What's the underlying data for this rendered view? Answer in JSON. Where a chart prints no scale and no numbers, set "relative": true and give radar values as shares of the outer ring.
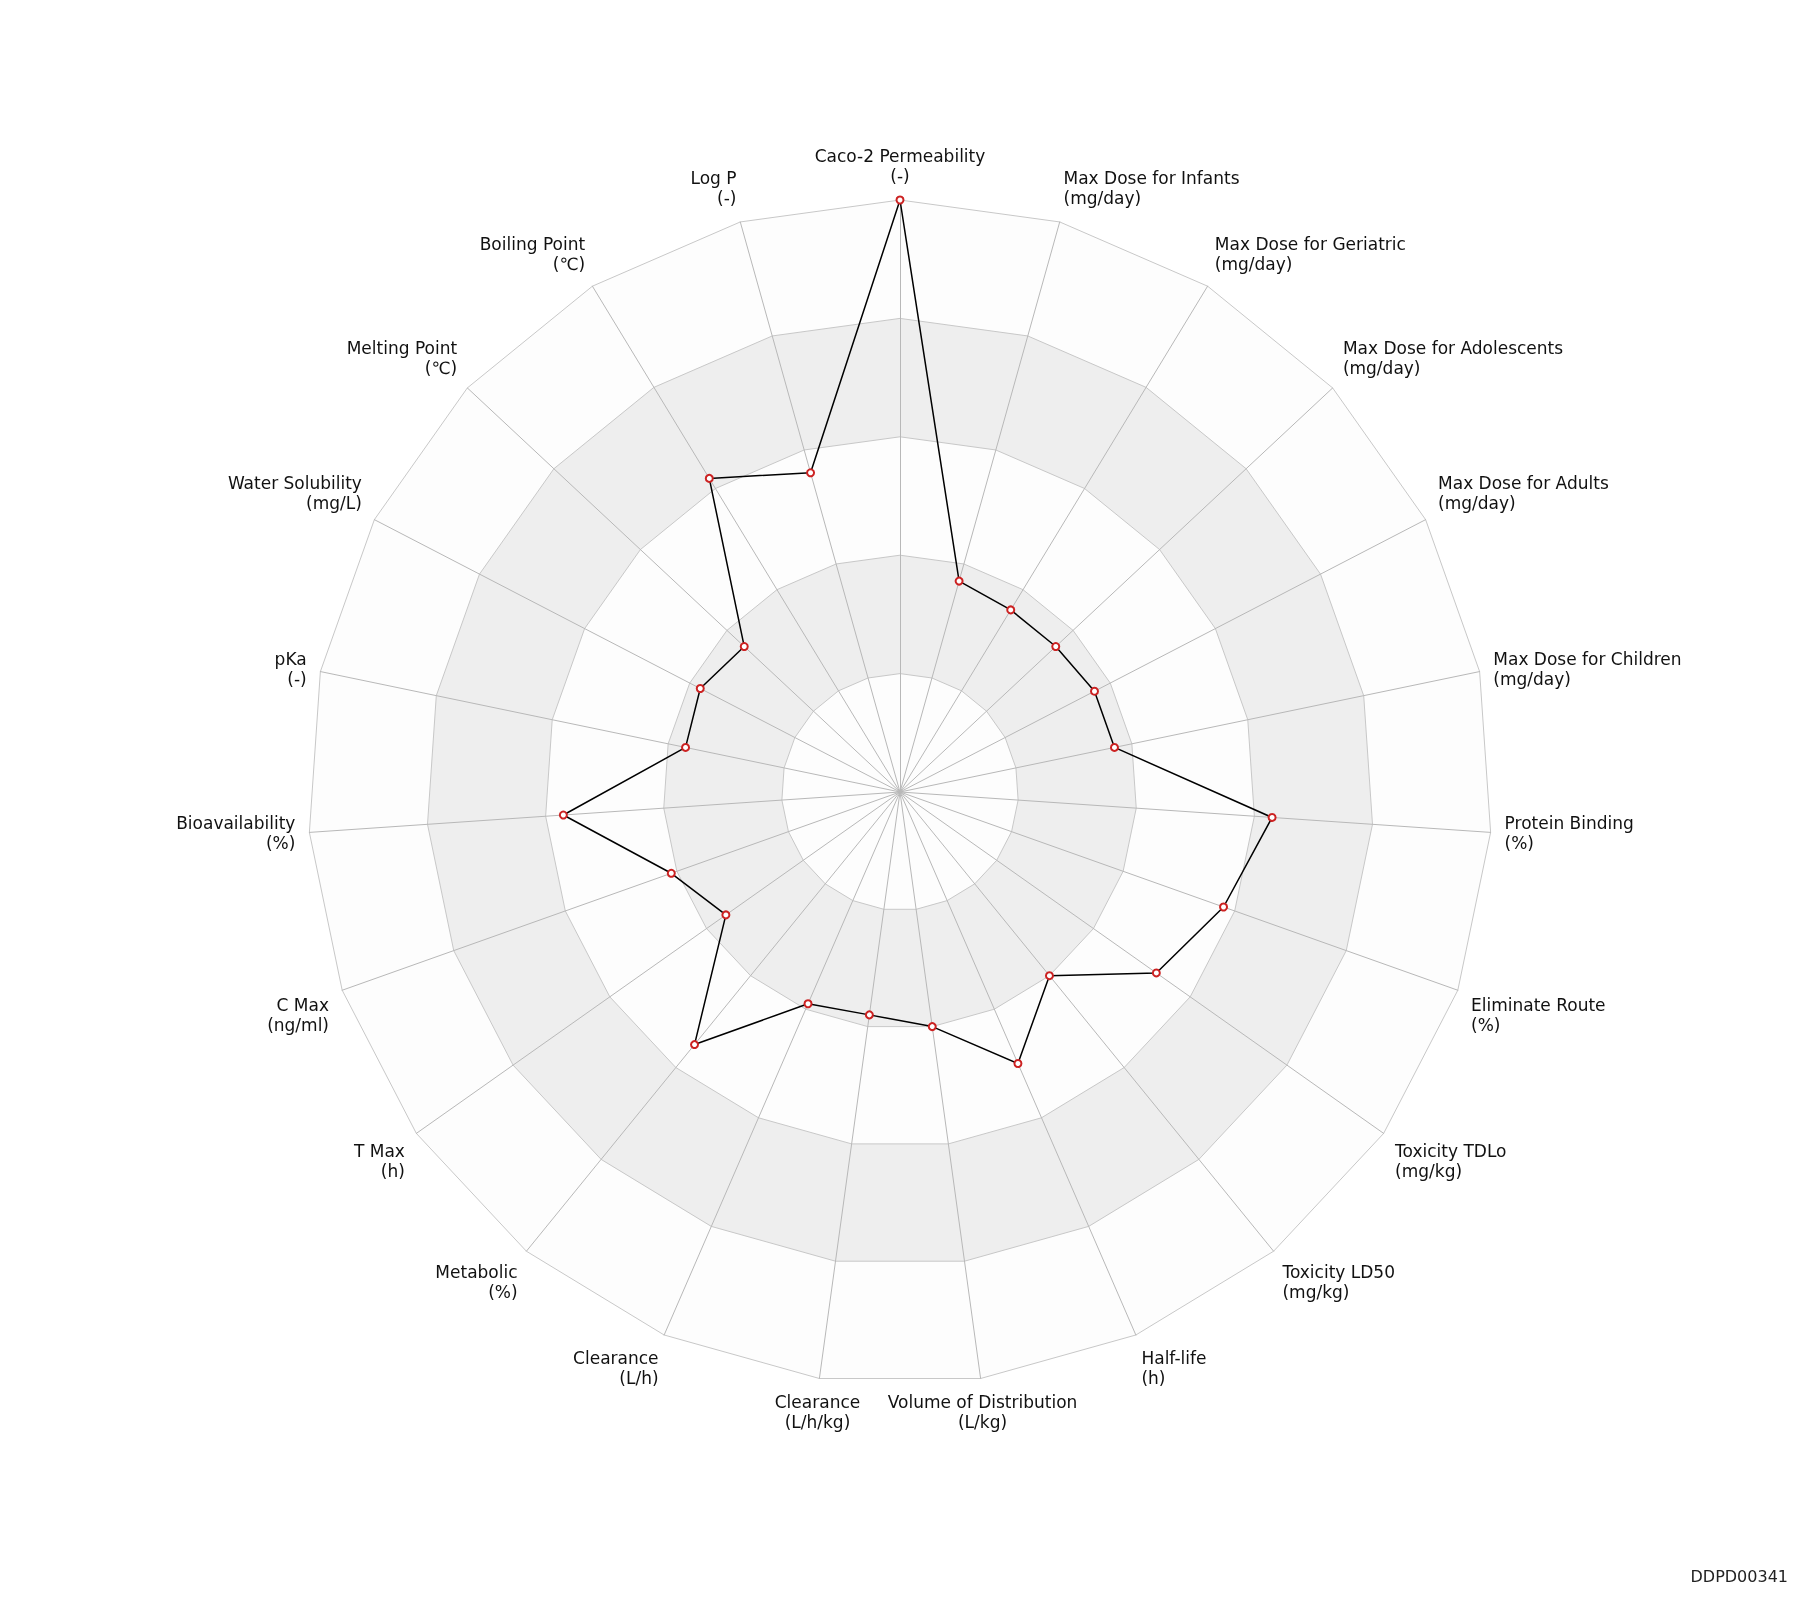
{
  "chart_data": {
    "type": "radar",
    "relative": true,
    "legend": false,
    "marker": "circle",
    "line_style": "solid",
    "categories": [
      "Caco-2 Permeability\n(-)",
      "Max Dose for Infants\n(mg/day)",
      "Max Dose for Geriatric\n(mg/day)",
      "Max Dose for Adolescents\n(mg/day)",
      "Max Dose for Adults\n(mg/day)",
      "Max Dose for Children\n(mg/day)",
      "Protein Binding\n(%)",
      "Eliminate Route\n(%)",
      "Toxicity TDLo\n(mg/kg)",
      "Toxicity LD50\n(mg/kg)",
      "Half-life\n(h)",
      "Volume of Distribution\n(L/kg)",
      "Clearance\n(L/h/kg)",
      "Clearance\n(L/h)",
      "Metabolic\n(%)",
      "T Max\n(h)",
      "C Max\n(ng/ml)",
      "Bioavailability\n(%)",
      "pKa\n(-)",
      "Water Solubility\n(mg/L)",
      "Melting Point\n(℃)",
      "Boiling Point\n(℃)",
      "Log P\n(-)"
    ],
    "series": [
      {
        "color": "#000000",
        "values": [
          1.0,
          0.37,
          0.36,
          0.36,
          0.37,
          0.37,
          0.63,
          0.58,
          0.53,
          0.4,
          0.5,
          0.4,
          0.38,
          0.39,
          0.55,
          0.36,
          0.41,
          0.57,
          0.37,
          0.38,
          0.36,
          0.62,
          0.56
        ]
      }
    ],
    "annotations": [
      "DDPD00341"
    ]
  }
}
